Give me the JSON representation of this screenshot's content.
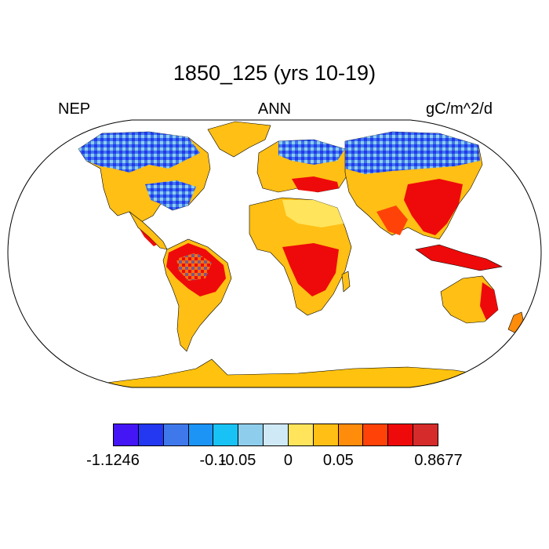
{
  "title": "1850_125 (yrs 10-19)",
  "label_left": "NEP",
  "label_center": "ANN",
  "label_right": "gC/m^2/d",
  "colors": {
    "ocean": "#ffffff",
    "outline": "#000000",
    "antarctica": "#ffc20e"
  },
  "colorbar": {
    "colors": [
      "#4416f5",
      "#2338f0",
      "#3f78ea",
      "#1c94f5",
      "#18c2f5",
      "#8fcdec",
      "#cfe9f7",
      "#ffe45c",
      "#ffbf14",
      "#ff8c0a",
      "#ff4208",
      "#ee0a0a",
      "#d52b2b"
    ],
    "tick_labels": [
      {
        "text": "-1.1246",
        "boundary": 0
      },
      {
        "text": "-0.1",
        "boundary": 4
      },
      {
        "text": "-0.05",
        "boundary": 5
      },
      {
        "text": "0",
        "boundary": 7
      },
      {
        "text": "0.05",
        "boundary": 9
      },
      {
        "text": "0.8677",
        "boundary": 13
      }
    ]
  }
}
